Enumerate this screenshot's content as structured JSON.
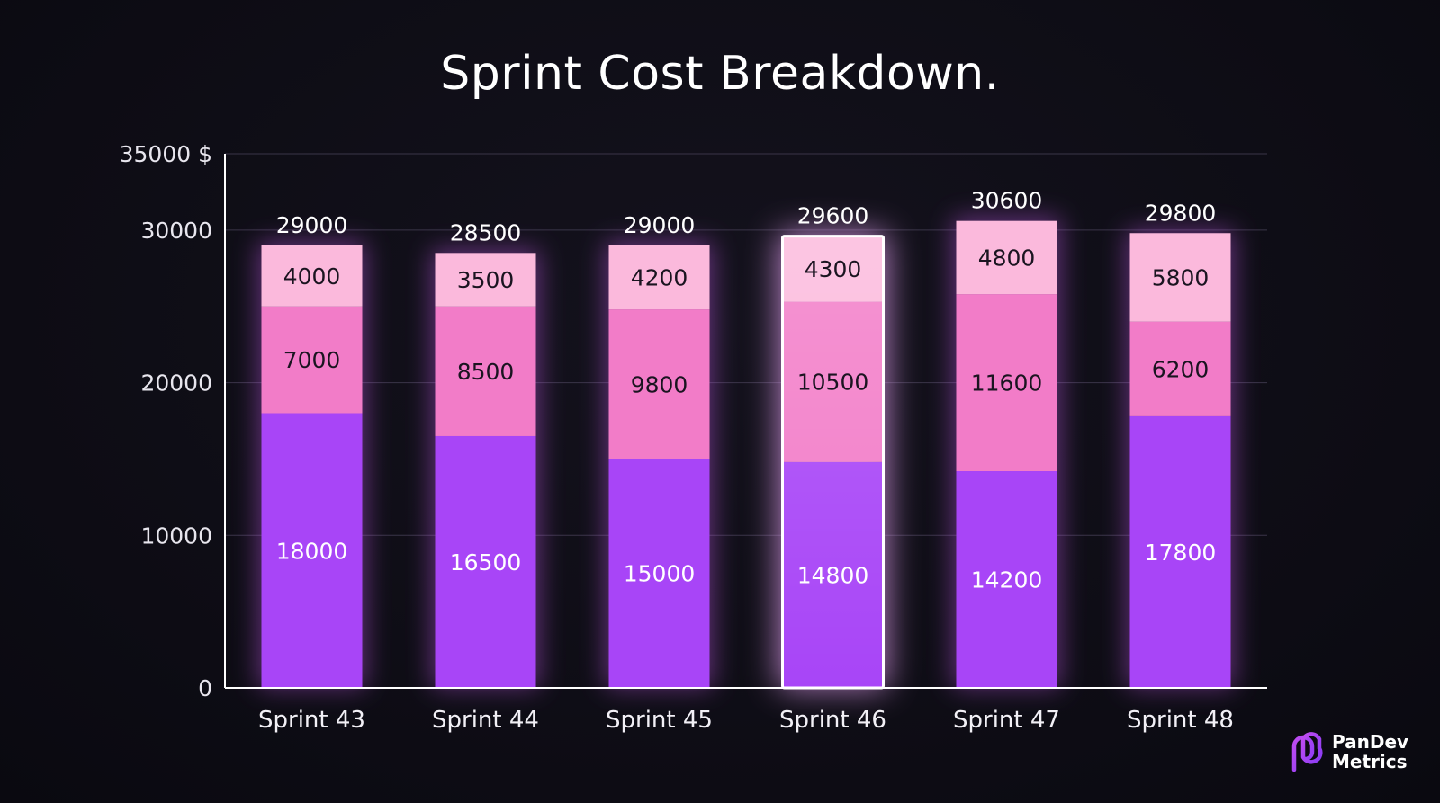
{
  "title": "Sprint Cost Breakdown.",
  "logo": {
    "line1": "PanDev",
    "line2": "Metrics",
    "icon": "pandev-logo-icon"
  },
  "colors": {
    "background": "#0d0c14",
    "segment_bottom": "#a845f7",
    "segment_middle": "#f27cc8",
    "segment_top": "#fbb9dc",
    "axis": "#ffffff",
    "grid": "#3a3548"
  },
  "chart_data": {
    "type": "bar",
    "stacked": true,
    "title": "Sprint Cost Breakdown.",
    "categories": [
      "Sprint 43",
      "Sprint 44",
      "Sprint 45",
      "Sprint 46",
      "Sprint 47",
      "Sprint 48"
    ],
    "series": [
      {
        "values": [
          18000,
          16500,
          15000,
          14800,
          14200,
          17800
        ]
      },
      {
        "values": [
          7000,
          8500,
          9800,
          10500,
          11600,
          6200
        ]
      },
      {
        "values": [
          4000,
          3500,
          4200,
          4300,
          4800,
          5800
        ]
      }
    ],
    "totals": [
      29000,
      28500,
      29000,
      29600,
      30600,
      29800
    ],
    "highlighted_category": "Sprint 46",
    "yticks": [
      {
        "value": 0,
        "label": "0"
      },
      {
        "value": 10000,
        "label": "10000"
      },
      {
        "value": 20000,
        "label": "20000"
      },
      {
        "value": 30000,
        "label": "30000"
      },
      {
        "value": 35000,
        "label": "35000 $"
      }
    ],
    "ylim": [
      0,
      35000
    ],
    "grid": true
  }
}
